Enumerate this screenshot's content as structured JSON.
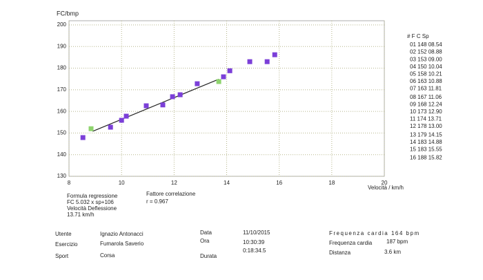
{
  "chart_data": {
    "type": "scatter",
    "ylabel": "FC/bmp",
    "xlabel": "Velocità / km/h",
    "xlim": [
      8,
      20
    ],
    "ylim": [
      130,
      200
    ],
    "xticks": [
      8,
      10,
      12,
      14,
      16,
      18,
      20
    ],
    "yticks": [
      130,
      140,
      150,
      160,
      170,
      180,
      190,
      200
    ],
    "grid": true,
    "series": [
      {
        "color": "#7b3fd8",
        "x": [
          8.53,
          9.58,
          10.0,
          10.18,
          10.94,
          11.57,
          11.94,
          12.23,
          12.88,
          13.88,
          14.12,
          14.88,
          15.54,
          15.83
        ],
        "values": [
          147.9,
          152.7,
          155.9,
          157.8,
          162.6,
          163,
          166.8,
          167.7,
          172.8,
          176,
          178.8,
          183,
          183,
          186.2
        ]
      },
      {
        "color": "#8fd46e",
        "x": [
          8.84,
          13.7
        ],
        "values": [
          152,
          173.8
        ]
      }
    ],
    "fit": {
      "color": "#222222",
      "x": [
        8.9,
        13.7
      ],
      "values": [
        150.8,
        174.9
      ]
    }
  },
  "table": {
    "header": "# F C      Sp",
    "rows": [
      "01 148 08.54",
      "02 152 08.88",
      "03 153 09.00",
      "04 150 10.04",
      "05 158 10.21",
      "06 163 10.88",
      "07 163 11.81",
      "08 167 11.06",
      "09 168 12.24",
      "10 173 12.90",
      "11 174 13.71",
      "12 178 13.00",
      "13 179 14.15",
      "14 183 14.88",
      "15 183 15.55",
      "16 188 15.82"
    ],
    "highlight": 10
  },
  "notes": {
    "regression": [
      "Formula regressione",
      "FC 5.032 x sp+106",
      "Velocità Deflessione",
      "13.71 km/h"
    ],
    "correlation": [
      "Fattore correlazione",
      "r = 0.967"
    ]
  },
  "info": {
    "utente_label": "Utente",
    "utente": "Ignazio Antonacci",
    "esercizio_label": "Esercizio",
    "esercizio": "Fumarola Saverio",
    "sport_label": "Sport",
    "sport": "Corsa",
    "data_label": "Data",
    "data": "11/10/2015",
    "ora_label": "Ora",
    "ora": "10:30:39",
    "durata_label": "Durata",
    "durata": "0:18:34.5",
    "fc_title": "Frequenza cardia 164 bpm",
    "fc_label": "Frequenza cardia",
    "fc": "187 bpm",
    "dist_label": "Distanza",
    "dist": "3.6 km"
  }
}
